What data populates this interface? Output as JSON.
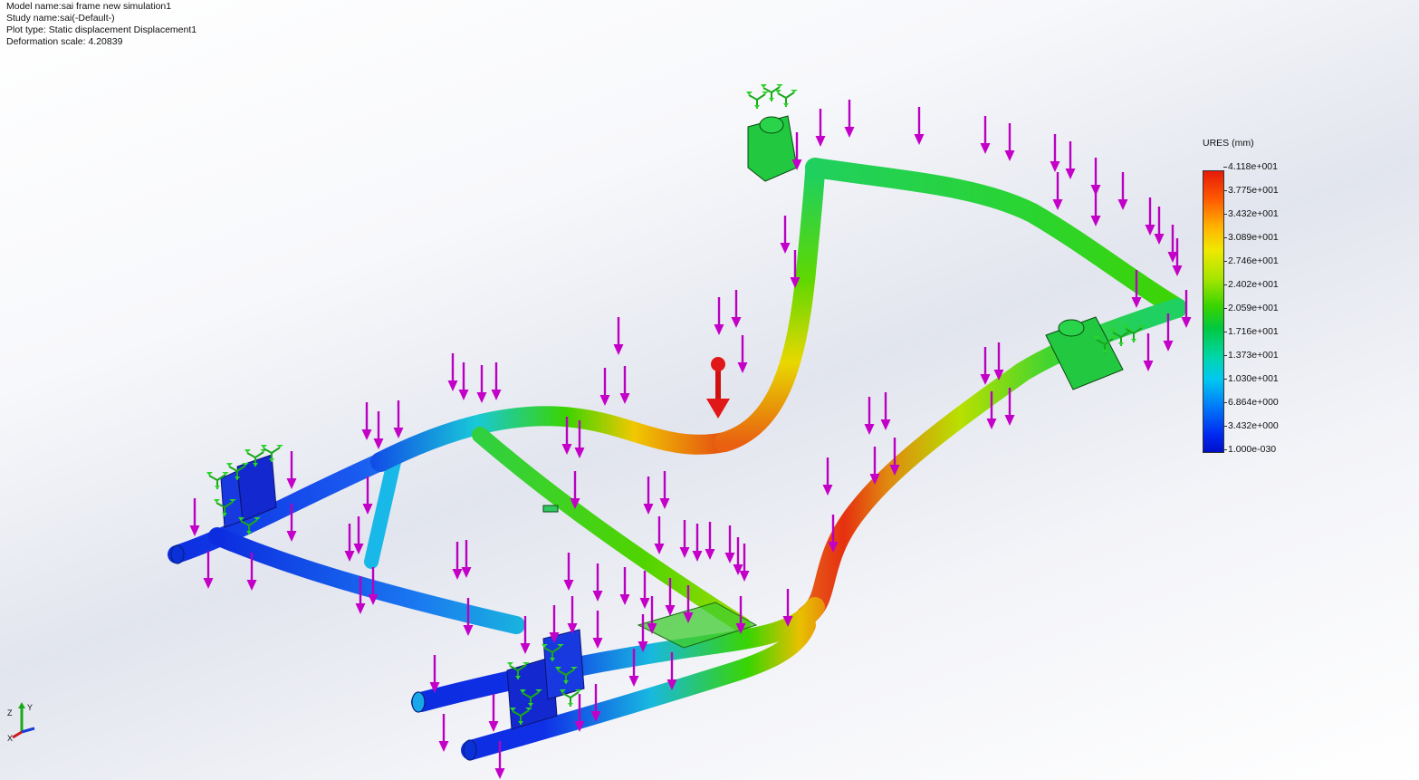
{
  "header": {
    "model_name": "Model name:sai frame new simulation1",
    "study_name": "Study name:sai(-Default-)",
    "plot_type": "Plot type: Static displacement Displacement1",
    "deformation_scale": "Deformation scale: 4.20839"
  },
  "legend": {
    "title": "URES (mm)",
    "ticks": [
      "4.118e+001",
      "3.775e+001",
      "3.432e+001",
      "3.089e+001",
      "2.746e+001",
      "2.402e+001",
      "2.059e+001",
      "1.716e+001",
      "1.373e+001",
      "1.030e+001",
      "6.864e+000",
      "3.432e+000",
      "1.000e-030"
    ]
  },
  "triad": {
    "z_label": "Z",
    "x_label": "X",
    "y_label": "Y"
  },
  "colors": {
    "max_red": "#e61a0a",
    "orange": "#ff6a00",
    "yellow": "#f0e800",
    "green": "#3ad400",
    "cyan": "#00c8f0",
    "blue": "#0028f0",
    "min_blue": "#0010c8",
    "load_arrow": "#c400c8",
    "fixture_green": "#2ad42a"
  }
}
